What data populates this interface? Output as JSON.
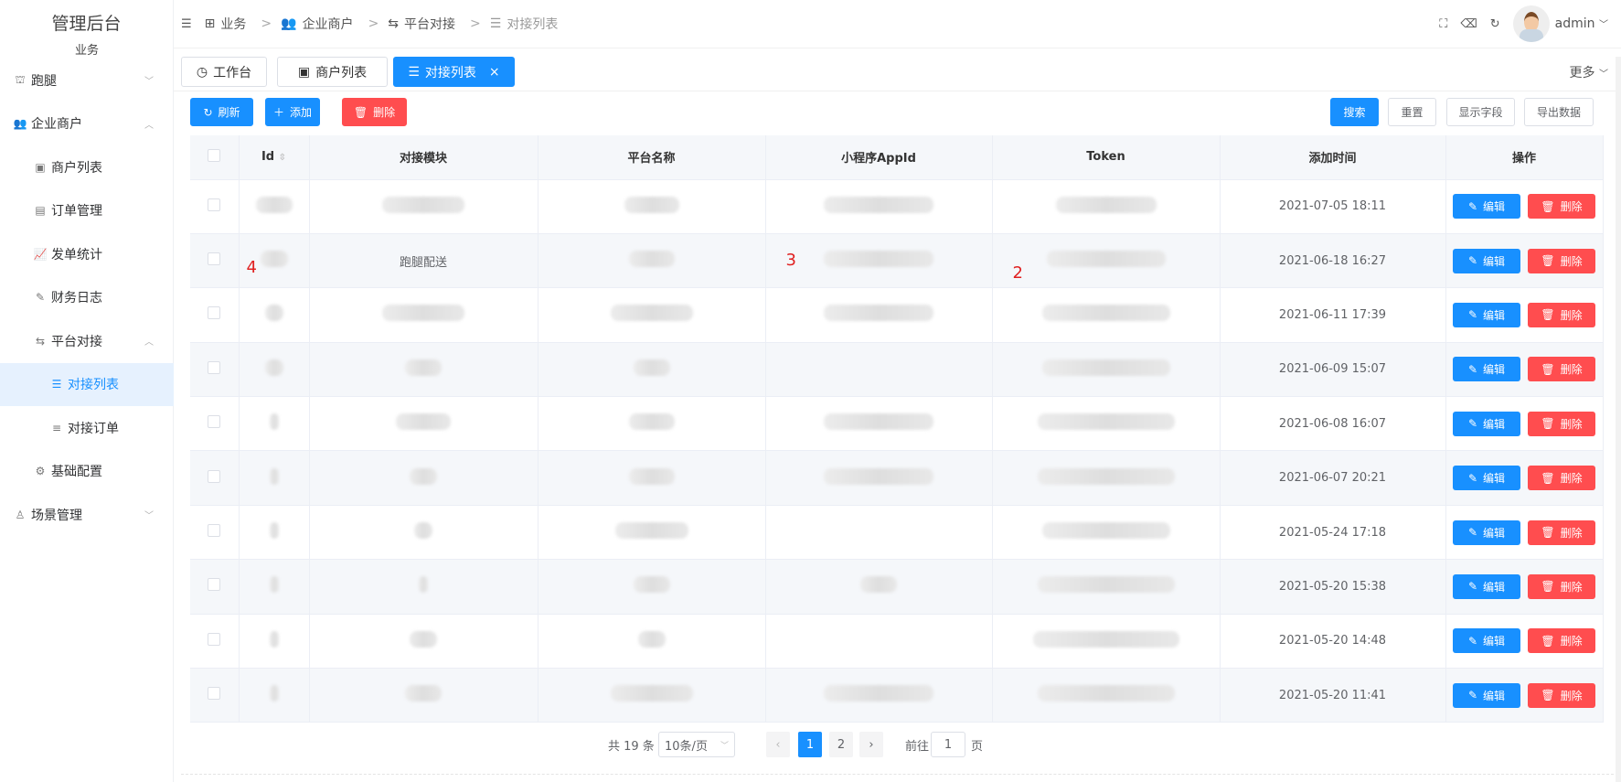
{
  "sidebar": {
    "title": "管理后台",
    "subtitle": "业务",
    "items": [
      {
        "label": "跑腿",
        "icon": "building-icon",
        "level": 1,
        "arrow": "﹀"
      },
      {
        "label": "企业商户",
        "icon": "users-icon",
        "level": 1,
        "arrow": "︿"
      },
      {
        "label": "商户列表",
        "icon": "id-card-icon",
        "level": 2
      },
      {
        "label": "订单管理",
        "icon": "document-icon",
        "level": 2
      },
      {
        "label": "发单统计",
        "icon": "chart-icon",
        "level": 2
      },
      {
        "label": "财务日志",
        "icon": "log-icon",
        "level": 2
      },
      {
        "label": "平台对接",
        "icon": "swap-icon",
        "level": 2,
        "arrow": "︿"
      },
      {
        "label": "对接列表",
        "icon": "list-icon",
        "level": 3,
        "active": true
      },
      {
        "label": "对接订单",
        "icon": "lines-icon",
        "level": 3
      },
      {
        "label": "基础配置",
        "icon": "gear-icon",
        "level": 2
      },
      {
        "label": "场景管理",
        "icon": "user-icon",
        "level": 1,
        "arrow": "﹀"
      }
    ]
  },
  "breadcrumb": [
    "业务",
    "企业商户",
    "平台对接",
    "对接列表"
  ],
  "user": {
    "name": "admin"
  },
  "tabs": [
    {
      "label": "工作台"
    },
    {
      "label": "商户列表"
    },
    {
      "label": "对接列表",
      "close": "×"
    }
  ],
  "more_label": "更多",
  "toolbar": {
    "refresh": "刷新",
    "add": "添加",
    "delete": "删除",
    "search": "搜索",
    "reset": "重置",
    "fields": "显示字段",
    "export": "导出数据"
  },
  "table": {
    "columns": [
      "Id",
      "对接模块",
      "平台名称",
      "小程序AppId",
      "Token",
      "添加时间",
      "操作"
    ],
    "rows": [
      {
        "time": "2021-07-05 18:11"
      },
      {
        "module": "跑腿配送",
        "time": "2021-06-18 16:27"
      },
      {
        "time": "2021-06-11 17:39"
      },
      {
        "time": "2021-06-09 15:07"
      },
      {
        "time": "2021-06-08 16:07"
      },
      {
        "time": "2021-06-07 20:21"
      },
      {
        "time": "2021-05-24 17:18"
      },
      {
        "time": "2021-05-20 15:38"
      },
      {
        "time": "2021-05-20 14:48"
      },
      {
        "time": "2021-05-20 11:41"
      }
    ],
    "edit_label": "编辑",
    "delete_label": "删除"
  },
  "annotations": [
    "4",
    "3",
    "2"
  ],
  "pagination": {
    "total": "共 19 条",
    "page_size": "10条/页",
    "pages": [
      "1",
      "2"
    ],
    "current": "1",
    "goto_label": "前往",
    "goto_value": "1",
    "page_unit": "页"
  },
  "colors": {
    "primary": "#1890ff",
    "danger": "#ff4d4f"
  }
}
